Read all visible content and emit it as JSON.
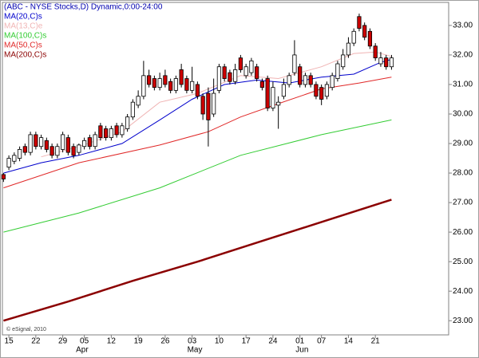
{
  "chart_data": {
    "type": "candlestick",
    "title": "(ABC - NYSE Stocks,D) Dynamic,0:00-24:00",
    "title_color": "#0000b0",
    "watermark": "© eSignal, 2010",
    "up_color": "#ffffff",
    "down_color": "#cc0000",
    "x": [
      -1,
      0,
      1,
      2,
      3,
      4,
      5,
      6,
      7,
      8,
      9,
      10,
      11,
      12,
      13,
      14,
      15,
      16,
      17,
      18,
      19,
      20,
      21,
      22,
      23,
      24,
      25,
      26,
      27,
      28,
      29,
      30,
      31,
      32,
      33,
      34,
      35,
      36,
      37,
      38,
      39,
      40,
      41,
      42,
      43,
      44,
      45,
      46,
      47,
      48,
      49,
      50,
      51,
      52,
      53,
      54,
      55,
      56,
      57,
      58,
      59,
      60,
      61,
      62,
      63,
      64,
      65,
      66,
      67,
      68,
      69,
      70,
      71
    ],
    "open": [
      27.95,
      28.2,
      28.4,
      28.5,
      28.9,
      28.7,
      29.3,
      28.9,
      29.1,
      28.9,
      28.6,
      28.8,
      29.2,
      28.9,
      28.7,
      28.9,
      29.2,
      28.9,
      29.6,
      29.5,
      29.2,
      29.6,
      29.3,
      29.5,
      29.9,
      30.3,
      30.6,
      31.3,
      31.2,
      30.9,
      31.3,
      31.1,
      30.8,
      31.5,
      31.2,
      30.8,
      31.0,
      30.6,
      30.7,
      30.0,
      30.8,
      31.6,
      31.4,
      31.1,
      31.9,
      31.3,
      31.4,
      31.6,
      31.1,
      31.2,
      30.2,
      30.3,
      30.6,
      31.0,
      31.4,
      31.6,
      31.0,
      31.3,
      31.0,
      30.9,
      30.6,
      30.9,
      31.2,
      31.6,
      32.0,
      32.4,
      33.3,
      33.0,
      32.8,
      32.3,
      31.7,
      31.9,
      31.6
    ],
    "high": [
      28.0,
      28.6,
      28.7,
      28.9,
      29.0,
      29.4,
      29.4,
      29.3,
      29.2,
      29.0,
      29.0,
      29.4,
      29.3,
      29.0,
      29.0,
      29.2,
      29.3,
      29.4,
      29.7,
      29.6,
      29.6,
      29.7,
      29.7,
      30.0,
      30.5,
      30.8,
      31.8,
      31.5,
      31.3,
      31.4,
      31.5,
      31.2,
      31.3,
      31.7,
      31.3,
      31.6,
      31.1,
      30.7,
      30.9,
      31.2,
      31.7,
      31.7,
      31.5,
      31.7,
      32.0,
      31.7,
      31.9,
      31.7,
      31.2,
      31.3,
      31.1,
      30.6,
      31.2,
      31.4,
      32.5,
      31.7,
      31.4,
      31.4,
      31.1,
      31.0,
      31.1,
      31.4,
      31.8,
      32.2,
      32.6,
      32.9,
      33.4,
      33.1,
      32.9,
      32.4,
      32.1,
      32.0,
      32.0
    ],
    "low": [
      27.7,
      28.1,
      28.3,
      28.4,
      28.6,
      28.6,
      28.8,
      28.8,
      28.7,
      28.5,
      28.5,
      28.7,
      28.6,
      28.5,
      28.6,
      28.8,
      28.8,
      28.8,
      29.1,
      29.1,
      29.1,
      29.2,
      29.2,
      29.4,
      29.8,
      30.2,
      30.5,
      30.9,
      30.8,
      30.8,
      30.9,
      30.7,
      30.7,
      30.9,
      30.7,
      30.7,
      30.5,
      29.8,
      28.9,
      29.9,
      30.7,
      31.1,
      31.0,
      31.0,
      31.4,
      31.2,
      31.3,
      31.1,
      30.8,
      30.1,
      30.1,
      29.5,
      30.5,
      30.9,
      31.3,
      30.9,
      30.9,
      30.9,
      30.5,
      30.3,
      30.5,
      30.8,
      31.1,
      31.5,
      31.9,
      32.3,
      32.8,
      32.5,
      32.2,
      31.8,
      31.6,
      31.5,
      31.5
    ],
    "close": [
      27.8,
      28.5,
      28.6,
      28.8,
      28.7,
      29.3,
      28.9,
      29.2,
      28.8,
      28.6,
      28.9,
      29.3,
      28.7,
      28.6,
      28.95,
      29.1,
      28.9,
      29.3,
      29.2,
      29.2,
      29.5,
      29.3,
      29.6,
      29.9,
      30.4,
      30.6,
      31.3,
      31.0,
      30.9,
      31.2,
      31.0,
      30.8,
      31.2,
      31.0,
      30.8,
      31.1,
      30.6,
      30.0,
      29.8,
      30.7,
      31.6,
      31.2,
      31.1,
      31.5,
      31.5,
      31.6,
      31.8,
      31.2,
      30.9,
      30.2,
      30.9,
      30.4,
      31.0,
      31.3,
      32.0,
      31.0,
      31.3,
      31.0,
      30.6,
      30.5,
      31.0,
      31.3,
      31.7,
      32.0,
      32.4,
      32.8,
      32.9,
      32.6,
      32.3,
      31.9,
      31.9,
      31.6,
      31.9
    ],
    "series": [
      {
        "name": "MA(20,C)s",
        "color": "#0000cc",
        "width": 1,
        "x": [
          -1,
          6,
          13,
          21,
          28,
          34,
          40,
          46,
          52,
          58,
          64,
          69,
          71
        ],
        "values": [
          28.0,
          28.35,
          28.6,
          29.0,
          29.8,
          30.5,
          31.0,
          31.15,
          31.05,
          31.25,
          31.35,
          31.75,
          31.85
        ]
      },
      {
        "name": "MA(13,C)e",
        "color": "#f0b4b4",
        "width": 1,
        "x": [
          6,
          13,
          21,
          28,
          35,
          43,
          50,
          58,
          64,
          68,
          71
        ],
        "values": [
          28.55,
          28.9,
          29.4,
          30.4,
          30.7,
          31.3,
          31.2,
          31.6,
          32.05,
          32.1,
          31.95
        ]
      },
      {
        "name": "MA(100,C)s",
        "color": "#33cc33",
        "width": 1,
        "x": [
          -1,
          13,
          28,
          43,
          58,
          71
        ],
        "values": [
          26.0,
          26.65,
          27.5,
          28.6,
          29.3,
          29.8
        ]
      },
      {
        "name": "MA(50,C)s",
        "color": "#e02828",
        "width": 1,
        "x": [
          -1,
          13,
          28,
          37,
          43,
          50,
          58,
          65,
          71
        ],
        "values": [
          27.5,
          28.35,
          28.95,
          29.4,
          29.9,
          30.35,
          30.85,
          31.05,
          31.25
        ]
      },
      {
        "name": "MA(200,C)s",
        "color": "#8b0000",
        "width": 2.5,
        "x": [
          -1,
          11,
          23,
          35,
          47,
          59,
          71
        ],
        "values": [
          23.0,
          23.65,
          24.35,
          25.0,
          25.7,
          26.4,
          27.1
        ]
      }
    ],
    "xlim": [
      -1.2,
      81.6
    ],
    "ylim": [
      22.52,
      33.78
    ],
    "xticks": [
      {
        "value": 0,
        "label": "15"
      },
      {
        "value": 5,
        "label": "22"
      },
      {
        "value": 10,
        "label": "29"
      },
      {
        "value": 14,
        "label": "05"
      },
      {
        "value": 19,
        "label": "12"
      },
      {
        "value": 24,
        "label": "19"
      },
      {
        "value": 29,
        "label": "26"
      },
      {
        "value": 34,
        "label": "03"
      },
      {
        "value": 39,
        "label": "10"
      },
      {
        "value": 44,
        "label": "17"
      },
      {
        "value": 49,
        "label": "24"
      },
      {
        "value": 54,
        "label": "01"
      },
      {
        "value": 58,
        "label": "07"
      },
      {
        "value": 63,
        "label": "14"
      },
      {
        "value": 68,
        "label": "21"
      }
    ],
    "month_ticks": [
      {
        "value": 13.6,
        "label": "Apr"
      },
      {
        "value": 34.5,
        "label": "May"
      },
      {
        "value": 54.4,
        "label": "Jun"
      }
    ],
    "yticks": [
      {
        "value": 23,
        "label": "23.00"
      },
      {
        "value": 24,
        "label": "24.00"
      },
      {
        "value": 25,
        "label": "25.00"
      },
      {
        "value": 26,
        "label": "26.00"
      },
      {
        "value": 27,
        "label": "27.00"
      },
      {
        "value": 28,
        "label": "28.00"
      },
      {
        "value": 29,
        "label": "29.00"
      },
      {
        "value": 30,
        "label": "30.00"
      },
      {
        "value": 31,
        "label": "31.00"
      },
      {
        "value": 32,
        "label": "32.00"
      },
      {
        "value": 33,
        "label": "33.00"
      }
    ]
  }
}
